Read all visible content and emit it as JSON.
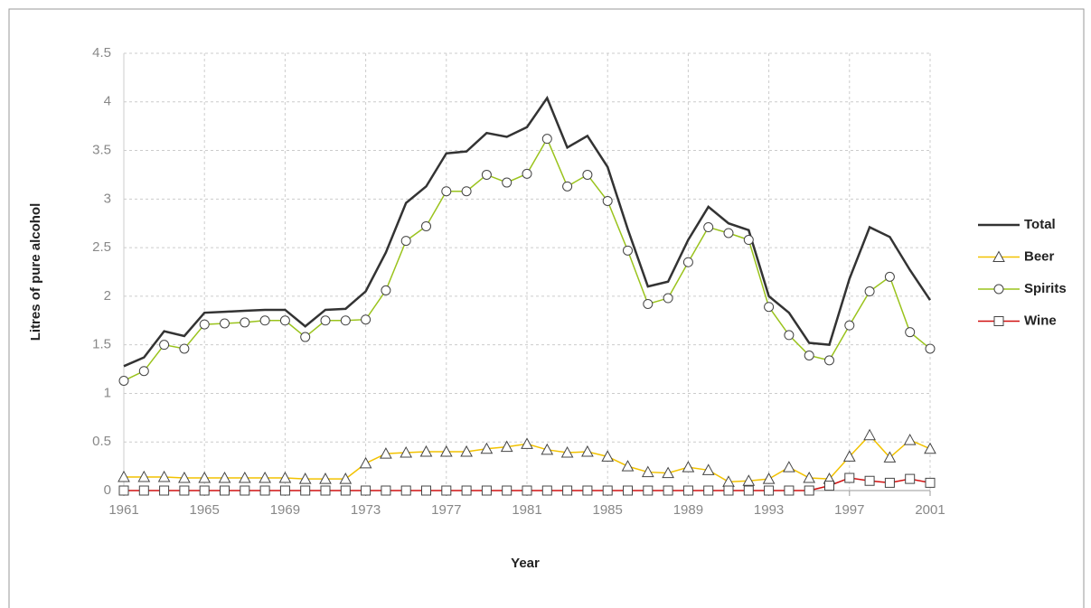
{
  "chart_data": {
    "type": "line",
    "xlabel": "Year",
    "ylabel": "Litres of pure alcohol",
    "x": [
      1961,
      1962,
      1963,
      1964,
      1965,
      1966,
      1967,
      1968,
      1969,
      1970,
      1971,
      1972,
      1973,
      1974,
      1975,
      1976,
      1977,
      1978,
      1979,
      1980,
      1981,
      1982,
      1983,
      1984,
      1985,
      1986,
      1987,
      1988,
      1989,
      1990,
      1991,
      1992,
      1993,
      1994,
      1995,
      1996,
      1997,
      1998,
      1999,
      2000,
      2001
    ],
    "series": [
      {
        "name": "Total",
        "color": "#333333",
        "marker": "none",
        "values": [
          1.28,
          1.37,
          1.64,
          1.59,
          1.83,
          1.84,
          1.85,
          1.86,
          1.86,
          1.69,
          1.86,
          1.87,
          2.05,
          2.45,
          2.96,
          3.13,
          3.47,
          3.49,
          3.68,
          3.64,
          3.74,
          4.04,
          3.53,
          3.65,
          3.33,
          2.69,
          2.1,
          2.15,
          2.58,
          2.92,
          2.75,
          2.68,
          2.0,
          1.83,
          1.52,
          1.5,
          2.18,
          2.71,
          2.61,
          2.27,
          1.96
        ]
      },
      {
        "name": "Beer",
        "color": "#f2c200",
        "marker": "triangle",
        "values": [
          0.14,
          0.14,
          0.14,
          0.13,
          0.13,
          0.13,
          0.13,
          0.13,
          0.13,
          0.12,
          0.12,
          0.12,
          0.28,
          0.38,
          0.39,
          0.4,
          0.4,
          0.4,
          0.43,
          0.45,
          0.48,
          0.42,
          0.39,
          0.4,
          0.35,
          0.25,
          0.19,
          0.18,
          0.24,
          0.21,
          0.09,
          0.1,
          0.12,
          0.24,
          0.13,
          0.12,
          0.35,
          0.57,
          0.34,
          0.52,
          0.43
        ]
      },
      {
        "name": "Spirits",
        "color": "#9ac31c",
        "marker": "circle",
        "values": [
          1.13,
          1.23,
          1.5,
          1.46,
          1.71,
          1.72,
          1.73,
          1.75,
          1.75,
          1.58,
          1.75,
          1.75,
          1.76,
          2.06,
          2.57,
          2.72,
          3.08,
          3.08,
          3.25,
          3.17,
          3.26,
          3.62,
          3.13,
          3.25,
          2.98,
          2.47,
          1.92,
          1.98,
          2.35,
          2.71,
          2.65,
          2.58,
          1.89,
          1.6,
          1.39,
          1.34,
          1.7,
          2.05,
          2.2,
          1.63,
          1.46
        ]
      },
      {
        "name": "Wine",
        "color": "#d01010",
        "marker": "square",
        "values": [
          0,
          0,
          0,
          0,
          0,
          0,
          0,
          0,
          0,
          0,
          0,
          0,
          0,
          0,
          0,
          0,
          0,
          0,
          0,
          0,
          0,
          0,
          0,
          0,
          0,
          0,
          0,
          0,
          0,
          0,
          0,
          0,
          0,
          0,
          0,
          0.05,
          0.13,
          0.1,
          0.08,
          0.12,
          0.08
        ]
      }
    ],
    "xlim": [
      1961,
      2001
    ],
    "xticks": [
      1961,
      1965,
      1969,
      1973,
      1977,
      1981,
      1985,
      1989,
      1993,
      1997,
      2001
    ],
    "ylim": [
      0,
      4.5
    ],
    "yticks": [
      0,
      0.5,
      1,
      1.5,
      2,
      2.5,
      3,
      3.5,
      4,
      4.5
    ],
    "grid": true,
    "legend": "right"
  }
}
